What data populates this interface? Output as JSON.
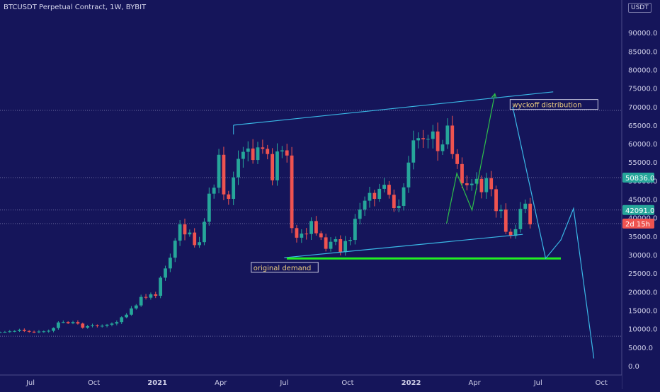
{
  "header": {
    "title": "BTCUSDT Perpetual Contract, 1W, BYBIT",
    "unit": "USDT"
  },
  "colors": {
    "background": "#15155a",
    "up": "#26a69a",
    "down": "#ef5350",
    "channel": "#3ab8e6",
    "projection_up": "#2ec04a",
    "demand_line": "#22ee22",
    "annotation_text": "#f0d080",
    "gridline": "#6a6aa0",
    "axis_text": "#cfcfe8"
  },
  "chart_data": {
    "type": "candlestick",
    "title": "BTCUSDT Perpetual Contract, 1W, BYBIT",
    "ylim": [
      -2500,
      95000
    ],
    "y_ticks": [
      {
        "value": 90000,
        "label": "90000.0"
      },
      {
        "value": 85000,
        "label": "85000.0"
      },
      {
        "value": 80000,
        "label": "80000.0"
      },
      {
        "value": 75000,
        "label": "75000.0"
      },
      {
        "value": 70000,
        "label": "70000.0"
      },
      {
        "value": 65000,
        "label": "65000.0"
      },
      {
        "value": 60000,
        "label": "60000.0"
      },
      {
        "value": 55000,
        "label": "55000.0"
      },
      {
        "value": 50000,
        "label": "50000.0"
      },
      {
        "value": 45000,
        "label": "45000.0"
      },
      {
        "value": 40000,
        "label": "40000.0"
      },
      {
        "value": 35000,
        "label": "35000.0"
      },
      {
        "value": 30000,
        "label": "30000.0"
      },
      {
        "value": 25000,
        "label": "25000.0"
      },
      {
        "value": 20000,
        "label": "20000.0"
      },
      {
        "value": 15000,
        "label": "15000.0"
      },
      {
        "value": 10000,
        "label": "10000.0"
      },
      {
        "value": 5000,
        "label": "5000.0"
      },
      {
        "value": 0,
        "label": "0.0"
      }
    ],
    "x_range": [
      2020.38,
      2022.83
    ],
    "x_ticks": [
      {
        "x": 2020.5,
        "label": "Jul",
        "bold": false
      },
      {
        "x": 2020.75,
        "label": "Oct",
        "bold": false
      },
      {
        "x": 2021.0,
        "label": "2021",
        "bold": true
      },
      {
        "x": 2021.25,
        "label": "Apr",
        "bold": false
      },
      {
        "x": 2021.5,
        "label": "Jul",
        "bold": false
      },
      {
        "x": 2021.75,
        "label": "Oct",
        "bold": false
      },
      {
        "x": 2022.0,
        "label": "2022",
        "bold": true
      },
      {
        "x": 2022.25,
        "label": "Apr",
        "bold": false
      },
      {
        "x": 2022.5,
        "label": "Jul",
        "bold": false
      },
      {
        "x": 2022.75,
        "label": "Oct",
        "bold": false
      }
    ],
    "horizontal_levels": [
      69000,
      50836,
      42091,
      38400,
      8000
    ],
    "price_badges": [
      {
        "value": 50836,
        "label": "50836.0",
        "color": "#26a69a"
      },
      {
        "value": 42091,
        "label": "42091.0",
        "color": "#26a69a"
      },
      {
        "value": 38400,
        "label": "2d 15h",
        "color": "#ef5350"
      }
    ],
    "ohlc_close": [
      9100,
      9150,
      9300,
      9400,
      9700,
      9400,
      9200,
      9100,
      9250,
      9300,
      9450,
      10200,
      11700,
      11800,
      11500,
      11800,
      11400,
      10300,
      10700,
      10900,
      10700,
      10800,
      11100,
      11400,
      11800,
      13100,
      13800,
      15500,
      16300,
      18600,
      18400,
      19300,
      18900,
      23800,
      26300,
      29200,
      33800,
      38200,
      35500,
      36000,
      32600,
      33400,
      38900,
      46500,
      48100,
      57000,
      46300,
      45100,
      50900,
      55900,
      57800,
      58700,
      55600,
      59000,
      58600,
      57200,
      50100,
      57900,
      58200,
      56800,
      37200,
      34600,
      35700,
      35600,
      39100,
      35800,
      34700,
      31600,
      33500,
      34200,
      30700,
      33700,
      34000,
      39700,
      42200,
      44600,
      46700,
      45100,
      47800,
      48900,
      46200,
      42600,
      43200,
      48200,
      54900,
      60900,
      61500,
      61200,
      61300,
      63300,
      58000,
      59800,
      64900,
      57200,
      54500,
      49300,
      48800,
      49200,
      50500,
      46900,
      50700,
      47700,
      41800,
      42200,
      36200,
      35100,
      36900,
      42400,
      43800,
      38200
    ],
    "channel_upper": [
      {
        "x": 2021.3,
        "y": 65000
      },
      {
        "x": 2022.56,
        "y": 74000
      }
    ],
    "channel_lower": [
      {
        "x": 2021.5,
        "y": 29200
      },
      {
        "x": 2022.44,
        "y": 35500
      }
    ],
    "demand_level": {
      "x1": 2021.51,
      "x2": 2022.59,
      "y": 29000
    },
    "projection_bull": [
      {
        "x": 2022.14,
        "y": 38500
      },
      {
        "x": 2022.18,
        "y": 52000
      },
      {
        "x": 2022.24,
        "y": 42000
      },
      {
        "x": 2022.33,
        "y": 73500
      }
    ],
    "projection_bear": [
      {
        "x": 2022.4,
        "y": 70000
      },
      {
        "x": 2022.53,
        "y": 29000
      },
      {
        "x": 2022.59,
        "y": 34000
      },
      {
        "x": 2022.64,
        "y": 42500
      },
      {
        "x": 2022.72,
        "y": 2000
      }
    ],
    "annotations": [
      {
        "text": "wyckoff distribution",
        "x": 2022.39,
        "y": 70600
      },
      {
        "text": "original demand",
        "x": 2021.37,
        "y": 26600
      }
    ]
  }
}
